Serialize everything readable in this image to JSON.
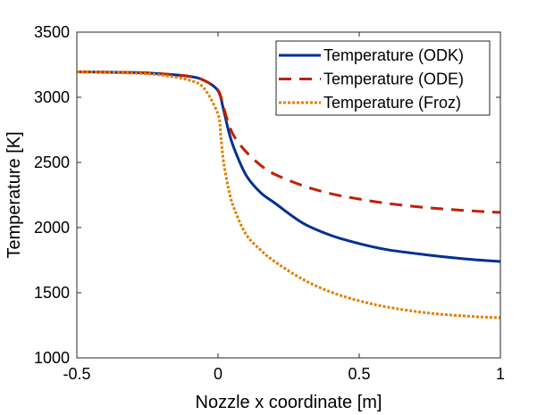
{
  "chart_data": {
    "type": "line",
    "title": "",
    "xlabel": "Nozzle x coordinate [m]",
    "ylabel": "Temperature [K]",
    "xlim": [
      -0.5,
      1
    ],
    "ylim": [
      1000,
      3500
    ],
    "xticks": [
      -0.5,
      0,
      0.5,
      1
    ],
    "xtick_labels": [
      "-0.5",
      "0",
      "0.5",
      "1"
    ],
    "yticks": [
      1000,
      1500,
      2000,
      2500,
      3000,
      3500
    ],
    "ytick_labels": [
      "1000",
      "1500",
      "2000",
      "2500",
      "3000",
      "3500"
    ],
    "grid": false,
    "legend_position": "top-right",
    "series": [
      {
        "name": "Temperature (ODK)",
        "color": "#003090",
        "style": "solid",
        "x": [
          -0.5,
          -0.3,
          -0.2,
          -0.1,
          -0.05,
          0,
          0.02,
          0.04,
          0.06,
          0.1,
          0.15,
          0.2,
          0.3,
          0.4,
          0.5,
          0.6,
          0.75,
          0.9,
          1.0
        ],
        "y": [
          3195,
          3190,
          3180,
          3160,
          3130,
          3050,
          2900,
          2720,
          2590,
          2400,
          2270,
          2190,
          2035,
          1940,
          1877,
          1830,
          1788,
          1755,
          1740
        ]
      },
      {
        "name": "Temperature (ODE)",
        "color": "#C02000",
        "style": "dashed",
        "x": [
          -0.5,
          -0.3,
          -0.2,
          -0.1,
          -0.05,
          0,
          0.02,
          0.04,
          0.06,
          0.1,
          0.15,
          0.2,
          0.3,
          0.4,
          0.5,
          0.6,
          0.75,
          0.9,
          1.0
        ],
        "y": [
          3195,
          3190,
          3180,
          3160,
          3130,
          3055,
          2920,
          2780,
          2690,
          2580,
          2480,
          2410,
          2322,
          2260,
          2219,
          2185,
          2151,
          2128,
          2116
        ]
      },
      {
        "name": "Temperature (Froz)",
        "color": "#E08000",
        "style": "dotted",
        "x": [
          -0.5,
          -0.3,
          -0.2,
          -0.1,
          -0.05,
          0,
          0.01,
          0.02,
          0.04,
          0.06,
          0.1,
          0.15,
          0.2,
          0.3,
          0.4,
          0.5,
          0.6,
          0.75,
          0.9,
          1.0
        ],
        "y": [
          3195,
          3185,
          3170,
          3130,
          3070,
          2870,
          2700,
          2500,
          2270,
          2130,
          1945,
          1830,
          1740,
          1603,
          1505,
          1438,
          1390,
          1343,
          1318,
          1308
        ]
      }
    ]
  }
}
